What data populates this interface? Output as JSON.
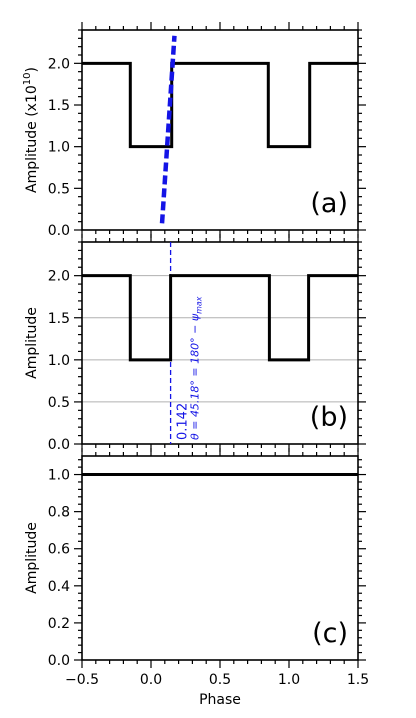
{
  "chart_data": [
    {
      "panel_label": "(a)",
      "type": "line",
      "ylabel": "Amplitude (x10¹⁰)",
      "ylabel_main": "Amplitude (x10",
      "ylabel_exp": "10",
      "ylabel_close": ")",
      "ylim": [
        0,
        2.4
      ],
      "yticks": [
        "0.0",
        "0.5",
        "1.0",
        "1.5",
        "2.0"
      ],
      "ytick_values": [
        0,
        0.5,
        1.0,
        1.5,
        2.0
      ],
      "grid": false,
      "series": [
        {
          "color": "#000000",
          "x": [
            -0.5,
            -0.15,
            -0.15,
            0.15,
            0.15,
            0.85,
            0.85,
            1.15,
            1.15,
            1.5
          ],
          "y": [
            2.0,
            2.0,
            1.0,
            1.0,
            2.0,
            2.0,
            1.0,
            1.0,
            2.0,
            2.0
          ]
        },
        {
          "color": "#1414e6",
          "style": "dashed",
          "x": [
            0.08,
            0.17
          ],
          "y": [
            0.08,
            2.33
          ]
        }
      ]
    },
    {
      "panel_label": "(b)",
      "type": "line",
      "ylabel": "Amplitude",
      "ylim": [
        0,
        2.4
      ],
      "yticks": [
        "0.0",
        "0.5",
        "1.0",
        "1.5",
        "2.0"
      ],
      "ytick_values": [
        0,
        0.5,
        1.0,
        1.5,
        2.0
      ],
      "grid": true,
      "series": [
        {
          "color": "#000000",
          "x": [
            -0.5,
            -0.15,
            -0.15,
            0.142,
            0.142,
            0.858,
            0.858,
            1.142,
            1.142,
            1.5
          ],
          "y": [
            2.0,
            2.0,
            1.0,
            1.0,
            2.0,
            2.0,
            1.0,
            1.0,
            2.0,
            2.0
          ]
        }
      ],
      "vline": {
        "x": 0.142,
        "color": "#1414e6"
      },
      "annotation_value": "0.142",
      "annotation_theta": "θ = 45.18° = 180° − ψ",
      "annotation_sub": "max"
    },
    {
      "panel_label": "(c)",
      "type": "line",
      "ylabel": "Amplitude",
      "ylim": [
        0,
        1.1
      ],
      "yticks": [
        "0.0",
        "0.2",
        "0.4",
        "0.6",
        "0.8",
        "1.0"
      ],
      "ytick_values": [
        0,
        0.2,
        0.4,
        0.6,
        0.8,
        1.0
      ],
      "grid": false,
      "xlabel": "Phase",
      "xlim": [
        -0.5,
        1.5
      ],
      "xticks": [
        "−0.5",
        "0.0",
        "0.5",
        "1.0",
        "1.5"
      ],
      "xtick_values": [
        -0.5,
        0,
        0.5,
        1.0,
        1.5
      ],
      "series": [
        {
          "color": "#000000",
          "x": [
            -0.5,
            1.5
          ],
          "y": [
            1.0,
            1.0
          ]
        }
      ]
    }
  ]
}
